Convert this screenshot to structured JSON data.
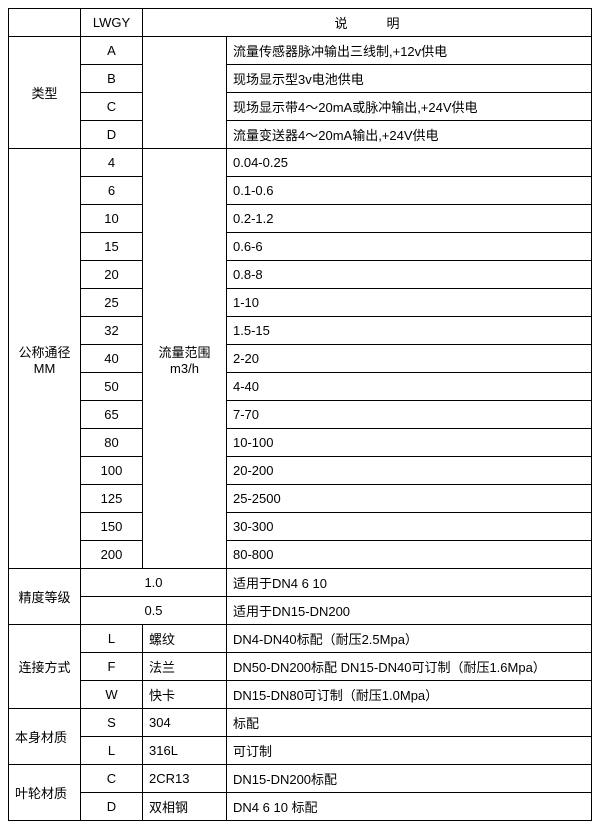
{
  "header": {
    "col2": "LWGY",
    "col4": "说　　　明"
  },
  "leixing": {
    "label": "类型",
    "rows": [
      {
        "code": "A",
        "desc": "流量传感器脉冲输出三线制,+12v供电"
      },
      {
        "code": "B",
        "desc": "现场显示型3v电池供电"
      },
      {
        "code": "C",
        "desc": "现场显示带4～20mA或脉冲输出,+24V供电"
      },
      {
        "code": "D",
        "desc": "流量变送器4～20mA输出,+24V供电"
      }
    ]
  },
  "dn": {
    "label_line1": "公称通径",
    "label_line2": "MM",
    "range_label_line1": "流量范围",
    "range_label_line2": "m3/h",
    "rows": [
      {
        "dn": "4",
        "range": "0.04-0.25"
      },
      {
        "dn": "6",
        "range": "0.1-0.6"
      },
      {
        "dn": "10",
        "range": "0.2-1.2"
      },
      {
        "dn": "15",
        "range": "0.6-6"
      },
      {
        "dn": "20",
        "range": "0.8-8"
      },
      {
        "dn": "25",
        "range": "1-10"
      },
      {
        "dn": "32",
        "range": "1.5-15"
      },
      {
        "dn": "40",
        "range": "2-20"
      },
      {
        "dn": "50",
        "range": "4-40"
      },
      {
        "dn": "65",
        "range": "7-70"
      },
      {
        "dn": "80",
        "range": "10-100"
      },
      {
        "dn": "100",
        "range": "20-200"
      },
      {
        "dn": "125",
        "range": "25-2500"
      },
      {
        "dn": "150",
        "range": "30-300"
      },
      {
        "dn": "200",
        "range": "80-800"
      }
    ]
  },
  "accuracy": {
    "label": "精度等级",
    "rows": [
      {
        "val": "1.0",
        "desc": "适用于DN4  6  10"
      },
      {
        "val": "0.5",
        "desc": "适用于DN15-DN200"
      }
    ]
  },
  "conn": {
    "label": "连接方式",
    "rows": [
      {
        "code": "L",
        "name": "螺纹",
        "desc": "DN4-DN40标配（耐压2.5Mpa）"
      },
      {
        "code": "F",
        "name": "法兰",
        "desc": "DN50-DN200标配 DN15-DN40可订制（耐压1.6Mpa）"
      },
      {
        "code": "W",
        "name": "快卡",
        "desc": "DN15-DN80可订制（耐压1.0Mpa）"
      }
    ]
  },
  "body_mat": {
    "label": "本身材质",
    "rows": [
      {
        "code": "S",
        "name": "304",
        "desc": "标配"
      },
      {
        "code": "L",
        "name": "316L",
        "desc": "可订制"
      }
    ]
  },
  "imp_mat": {
    "label": "叶轮材质",
    "rows": [
      {
        "code": "C",
        "name": "2CR13",
        "desc": "DN15-DN200标配"
      },
      {
        "code": "D",
        "name": "双相钢",
        "desc": "DN4 6 10 标配"
      }
    ]
  }
}
